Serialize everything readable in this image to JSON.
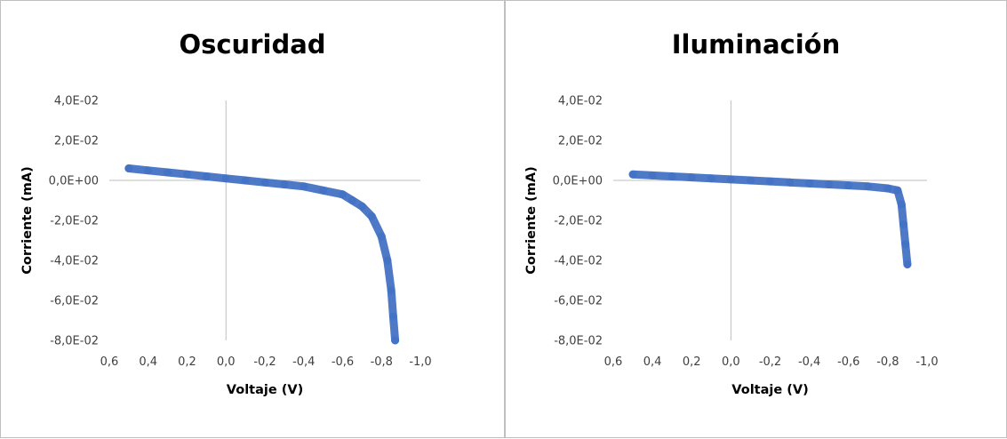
{
  "chart_data": [
    {
      "type": "scatter",
      "title": "Oscuridad",
      "xlabel": "Voltaje (V)",
      "ylabel": "Corriente (mA)",
      "xlim": [
        0.6,
        -1.0
      ],
      "ylim": [
        -0.08,
        0.04
      ],
      "x_reversed": true,
      "x_ticks": [
        "0,6",
        "0,4",
        "0,2",
        "0,0",
        "-0,2",
        "-0,4",
        "-0,6",
        "-0,8",
        "-1,0"
      ],
      "y_ticks": [
        "4,0E-02",
        "2,0E-02",
        "0,0E+00",
        "-2,0E-02",
        "-4,0E-02",
        "-6,0E-02",
        "-8,0E-02"
      ],
      "grid": false,
      "marker_color": "#4472C4",
      "series": [
        {
          "x": [
            0.5,
            0.4,
            0.3,
            0.2,
            0.1,
            0.0,
            -0.1,
            -0.2,
            -0.3,
            -0.4,
            -0.5,
            -0.6,
            -0.65,
            -0.7,
            -0.75,
            -0.8,
            -0.83,
            -0.85,
            -0.86,
            -0.87
          ],
          "y": [
            0.006,
            0.005,
            0.004,
            0.003,
            0.002,
            0.001,
            0.0,
            -0.001,
            -0.002,
            -0.003,
            -0.005,
            -0.007,
            -0.01,
            -0.013,
            -0.018,
            -0.028,
            -0.04,
            -0.055,
            -0.068,
            -0.08
          ]
        }
      ]
    },
    {
      "type": "scatter",
      "title": "Iluminación",
      "xlabel": "Voltaje (V)",
      "ylabel": "Corriente (mA)",
      "xlim": [
        0.6,
        -1.0
      ],
      "ylim": [
        -0.08,
        0.04
      ],
      "x_reversed": true,
      "x_ticks": [
        "0,6",
        "0,4",
        "0,2",
        "0,0",
        "-0,2",
        "-0,4",
        "-0,6",
        "-0,8",
        "-1,0"
      ],
      "y_ticks": [
        "4,0E-02",
        "2,0E-02",
        "0,0E+00",
        "-2,0E-02",
        "-4,0E-02",
        "-6,0E-02",
        "-8,0E-02"
      ],
      "grid": false,
      "marker_color": "#4472C4",
      "series": [
        {
          "x": [
            0.5,
            0.4,
            0.3,
            0.2,
            0.1,
            0.0,
            -0.1,
            -0.2,
            -0.3,
            -0.4,
            -0.5,
            -0.6,
            -0.7,
            -0.8,
            -0.85,
            -0.87,
            -0.88,
            -0.89,
            -0.9
          ],
          "y": [
            0.003,
            0.0025,
            0.002,
            0.0015,
            0.001,
            0.0005,
            0.0,
            -0.0005,
            -0.001,
            -0.0015,
            -0.002,
            -0.0025,
            -0.003,
            -0.004,
            -0.005,
            -0.012,
            -0.022,
            -0.032,
            -0.042
          ]
        }
      ]
    }
  ]
}
